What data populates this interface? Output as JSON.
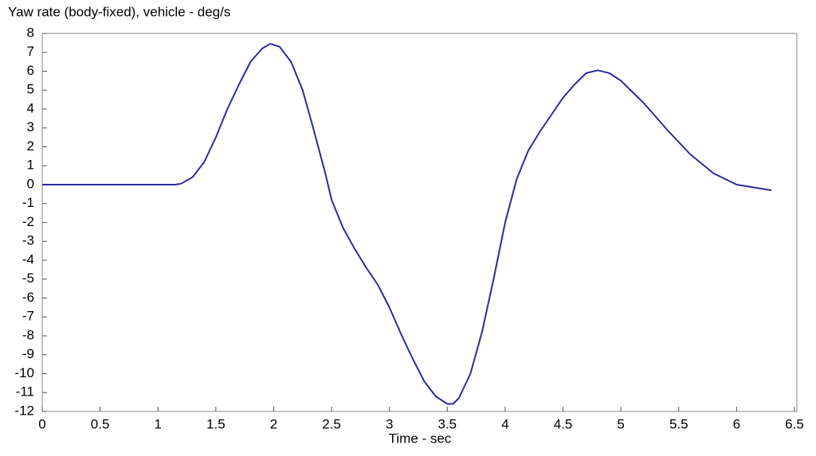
{
  "chart_data": {
    "type": "line",
    "title": "Yaw rate (body-fixed), vehicle - deg/s",
    "x_label": "Time - sec",
    "x": [
      0,
      0.5,
      1.0,
      1.15,
      1.2,
      1.3,
      1.4,
      1.5,
      1.6,
      1.7,
      1.8,
      1.9,
      1.97,
      2.05,
      2.15,
      2.25,
      2.35,
      2.45,
      2.5,
      2.6,
      2.7,
      2.8,
      2.9,
      3.0,
      3.1,
      3.2,
      3.3,
      3.4,
      3.5,
      3.55,
      3.6,
      3.7,
      3.8,
      3.9,
      4.0,
      4.1,
      4.2,
      4.3,
      4.4,
      4.5,
      4.6,
      4.7,
      4.8,
      4.9,
      5.0,
      5.2,
      5.4,
      5.6,
      5.8,
      6.0,
      6.2,
      6.3
    ],
    "series": [
      {
        "name": "Yaw rate",
        "color": "#2b2b9c",
        "values": [
          0,
          0,
          0,
          0,
          0.05,
          0.4,
          1.2,
          2.5,
          4.0,
          5.3,
          6.5,
          7.2,
          7.45,
          7.3,
          6.5,
          5.0,
          2.8,
          0.5,
          -0.8,
          -2.3,
          -3.4,
          -4.4,
          -5.3,
          -6.5,
          -7.9,
          -9.2,
          -10.4,
          -11.2,
          -11.6,
          -11.6,
          -11.3,
          -10.0,
          -7.8,
          -5.0,
          -2.0,
          0.3,
          1.8,
          2.8,
          3.7,
          4.6,
          5.3,
          5.9,
          6.05,
          5.9,
          5.5,
          4.3,
          2.9,
          1.6,
          0.6,
          0.0,
          -0.2,
          -0.3
        ]
      }
    ],
    "xlim": [
      0,
      6.5
    ],
    "xticks": [
      0,
      0.5,
      1,
      1.5,
      2,
      2.5,
      3,
      3.5,
      4,
      4.5,
      5,
      5.5,
      6,
      6.5
    ],
    "ylim": [
      -12,
      8
    ],
    "yticks": [
      -12,
      -11,
      -10,
      -9,
      -8,
      -7,
      -6,
      -5,
      -4,
      -3,
      -2,
      -1,
      0,
      1,
      2,
      3,
      4,
      5,
      6,
      7,
      8
    ],
    "grid": false
  }
}
